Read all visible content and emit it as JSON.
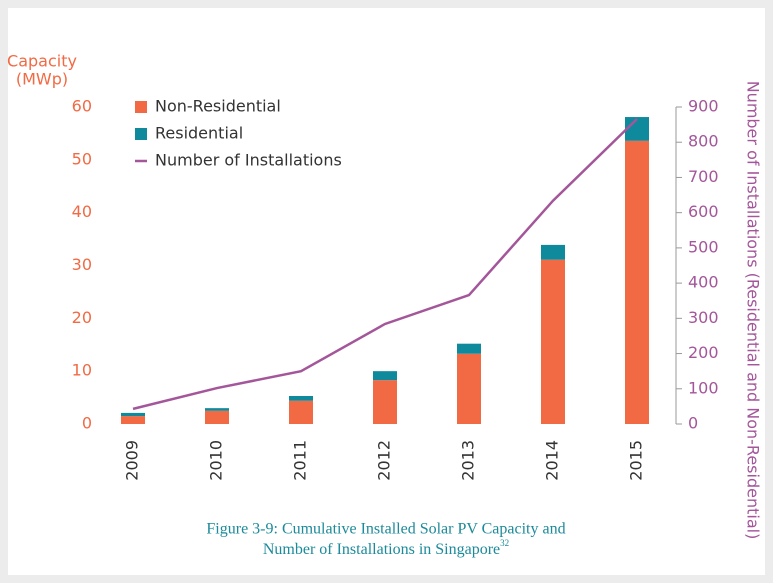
{
  "chart_data": {
    "type": "bar",
    "y_label": [
      "Capacity",
      "(MWp)"
    ],
    "y2_label": "Number of Installations (Residential and Non-Residential)",
    "caption": [
      "Figure 3-9: Cumulative Installed Solar PV Capacity and",
      "Number of Installations in Singapore"
    ],
    "caption_ref": "32",
    "categories": [
      "2009",
      "2010",
      "2011",
      "2012",
      "2013",
      "2014",
      "2015"
    ],
    "series": [
      {
        "name": "Non-Residential",
        "color": "#f26a44",
        "values": [
          1.5,
          2.5,
          4.4,
          8.3,
          13.3,
          31.1,
          53.6
        ]
      },
      {
        "name": "Residential",
        "color": "#0f8a9d",
        "values": [
          0.6,
          0.5,
          0.9,
          1.7,
          1.9,
          2.8,
          4.5
        ]
      },
      {
        "name": "Number of Installations",
        "color": "#a4569a",
        "axis": "y2",
        "values": [
          43,
          102,
          150,
          284,
          366,
          634,
          866
        ]
      }
    ],
    "ylim": [
      0,
      60
    ],
    "yticks": [
      0,
      10,
      20,
      30,
      40,
      50,
      60
    ],
    "y2lim": [
      0,
      900
    ],
    "y2ticks": [
      0,
      100,
      200,
      300,
      400,
      500,
      600,
      700,
      800,
      900
    ],
    "legend": "top-left"
  }
}
